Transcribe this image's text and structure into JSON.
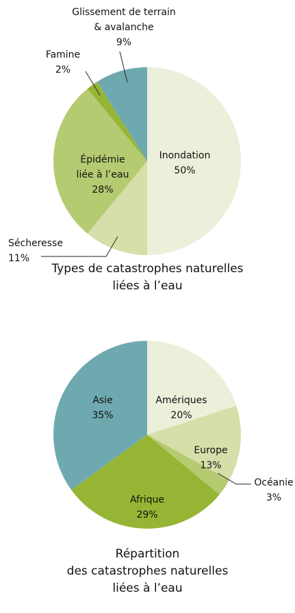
{
  "chart_data": [
    {
      "type": "pie",
      "title": "Types de catastrophes naturelles\nliées à l’eau",
      "categories": [
        "Inondation",
        "Sécheresse",
        "Épidémie\nliée à l’eau",
        "Famine",
        "Glissement de terrain\n& avalanche"
      ],
      "values": [
        50,
        11,
        28,
        2,
        9
      ],
      "value_labels": [
        "50%",
        "11%",
        "28%",
        "2%",
        "9%"
      ],
      "colors": [
        "#ecefd9",
        "#d6dfa9",
        "#b5cb72",
        "#96b534",
        "#6fa9b0"
      ]
    },
    {
      "type": "pie",
      "title": "Répartition\ndes catastrophes naturelles\nliées à l’eau",
      "categories": [
        "Amériques",
        "Europe",
        "Océanie",
        "Afrique",
        "Asie"
      ],
      "values": [
        20,
        13,
        3,
        29,
        35
      ],
      "value_labels": [
        "20%",
        "13%",
        "3%",
        "29%",
        "35%"
      ],
      "colors": [
        "#ecefd9",
        "#d6dfa9",
        "#b5cb72",
        "#96b534",
        "#6fa9b0"
      ]
    }
  ]
}
